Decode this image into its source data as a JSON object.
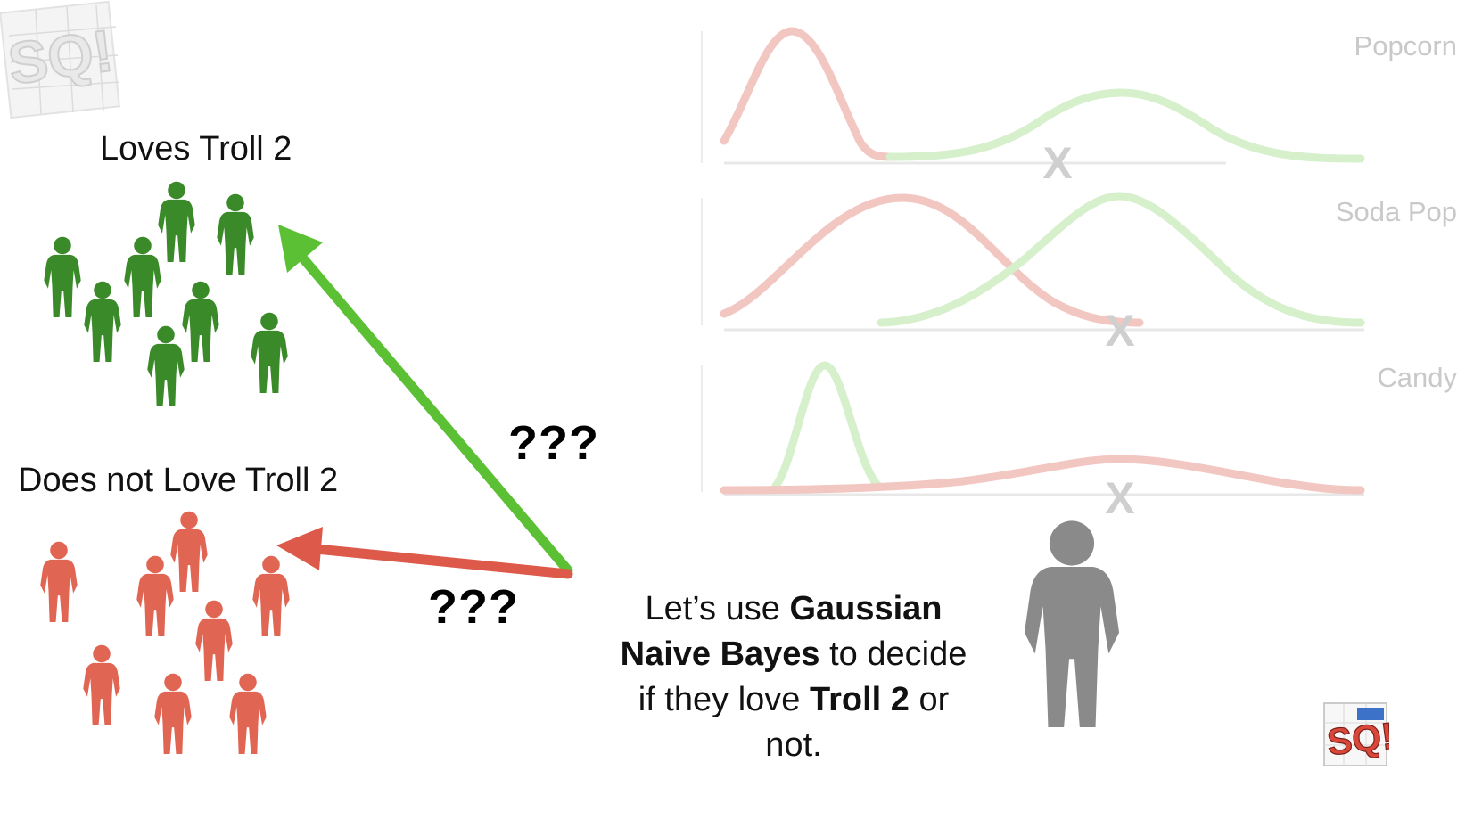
{
  "groups": {
    "loves_label": "Loves Troll 2",
    "not_loves_label": "Does not Love Troll 2",
    "loves_color": "#3b8a2a",
    "not_loves_color": "#e06553"
  },
  "arrows": {
    "green_question": "???",
    "red_question": "???",
    "green_color": "#5cc034",
    "red_color": "#dd5a4a"
  },
  "caption": {
    "line1_plain": "Let’s use ",
    "line1_bold": "Gaussian",
    "line2_bold": "Naive Bayes",
    "line2_plain": " to decide",
    "line3_plain": "if they love ",
    "line3_bold": "Troll 2",
    "line3_tail": " or",
    "line4_plain": "not."
  },
  "plots": [
    {
      "label": "Popcorn"
    },
    {
      "label": "Soda Pop"
    },
    {
      "label": "Candy"
    }
  ],
  "marker": "X",
  "logo": {
    "text": "SQ!",
    "accent": "#d9473b"
  }
}
